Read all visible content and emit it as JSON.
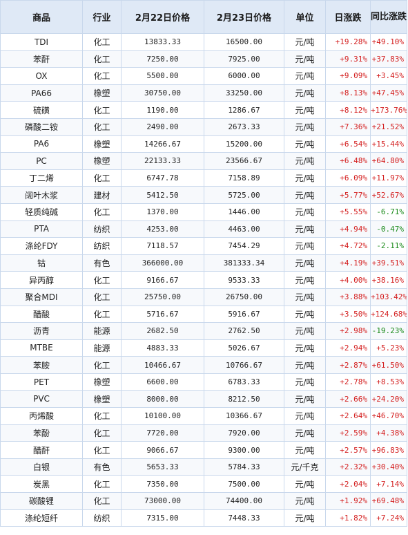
{
  "colors": {
    "header_bg": "#dfe9f6",
    "border": "#c9d8ec",
    "up": "#d42020",
    "down": "#1a8a1a"
  },
  "headers": [
    "商品",
    "行业",
    "2月22日价格",
    "2月23日价格",
    "单位",
    "日涨跌",
    "同比涨跌"
  ],
  "rows": [
    [
      "TDI",
      "化工",
      "13833.33",
      "16500.00",
      "元/吨",
      "+19.28%",
      "+49.10%"
    ],
    [
      "苯酐",
      "化工",
      "7250.00",
      "7925.00",
      "元/吨",
      "+9.31%",
      "+37.83%"
    ],
    [
      "OX",
      "化工",
      "5500.00",
      "6000.00",
      "元/吨",
      "+9.09%",
      "+3.45%"
    ],
    [
      "PA66",
      "橡塑",
      "30750.00",
      "33250.00",
      "元/吨",
      "+8.13%",
      "+47.45%"
    ],
    [
      "硫磺",
      "化工",
      "1190.00",
      "1286.67",
      "元/吨",
      "+8.12%",
      "+173.76%"
    ],
    [
      "磷酸二铵",
      "化工",
      "2490.00",
      "2673.33",
      "元/吨",
      "+7.36%",
      "+21.52%"
    ],
    [
      "PA6",
      "橡塑",
      "14266.67",
      "15200.00",
      "元/吨",
      "+6.54%",
      "+15.44%"
    ],
    [
      "PC",
      "橡塑",
      "22133.33",
      "23566.67",
      "元/吨",
      "+6.48%",
      "+64.80%"
    ],
    [
      "丁二烯",
      "化工",
      "6747.78",
      "7158.89",
      "元/吨",
      "+6.09%",
      "+11.97%"
    ],
    [
      "阔叶木浆",
      "建材",
      "5412.50",
      "5725.00",
      "元/吨",
      "+5.77%",
      "+52.67%"
    ],
    [
      "轻质纯碱",
      "化工",
      "1370.00",
      "1446.00",
      "元/吨",
      "+5.55%",
      "-6.71%"
    ],
    [
      "PTA",
      "纺织",
      "4253.00",
      "4463.00",
      "元/吨",
      "+4.94%",
      "-0.47%"
    ],
    [
      "涤纶FDY",
      "纺织",
      "7118.57",
      "7454.29",
      "元/吨",
      "+4.72%",
      "-2.11%"
    ],
    [
      "钴",
      "有色",
      "366000.00",
      "381333.34",
      "元/吨",
      "+4.19%",
      "+39.51%"
    ],
    [
      "异丙醇",
      "化工",
      "9166.67",
      "9533.33",
      "元/吨",
      "+4.00%",
      "+38.16%"
    ],
    [
      "聚合MDI",
      "化工",
      "25750.00",
      "26750.00",
      "元/吨",
      "+3.88%",
      "+103.42%"
    ],
    [
      "醋酸",
      "化工",
      "5716.67",
      "5916.67",
      "元/吨",
      "+3.50%",
      "+124.68%"
    ],
    [
      "沥青",
      "能源",
      "2682.50",
      "2762.50",
      "元/吨",
      "+2.98%",
      "-19.23%"
    ],
    [
      "MTBE",
      "能源",
      "4883.33",
      "5026.67",
      "元/吨",
      "+2.94%",
      "+5.23%"
    ],
    [
      "苯胺",
      "化工",
      "10466.67",
      "10766.67",
      "元/吨",
      "+2.87%",
      "+61.50%"
    ],
    [
      "PET",
      "橡塑",
      "6600.00",
      "6783.33",
      "元/吨",
      "+2.78%",
      "+8.53%"
    ],
    [
      "PVC",
      "橡塑",
      "8000.00",
      "8212.50",
      "元/吨",
      "+2.66%",
      "+24.20%"
    ],
    [
      "丙烯酸",
      "化工",
      "10100.00",
      "10366.67",
      "元/吨",
      "+2.64%",
      "+46.70%"
    ],
    [
      "苯酚",
      "化工",
      "7720.00",
      "7920.00",
      "元/吨",
      "+2.59%",
      "+4.38%"
    ],
    [
      "醋酐",
      "化工",
      "9066.67",
      "9300.00",
      "元/吨",
      "+2.57%",
      "+96.83%"
    ],
    [
      "白银",
      "有色",
      "5653.33",
      "5784.33",
      "元/千克",
      "+2.32%",
      "+30.40%"
    ],
    [
      "炭黑",
      "化工",
      "7350.00",
      "7500.00",
      "元/吨",
      "+2.04%",
      "+7.14%"
    ],
    [
      "碳酸锂",
      "化工",
      "73000.00",
      "74400.00",
      "元/吨",
      "+1.92%",
      "+69.48%"
    ],
    [
      "涤纶短纤",
      "纺织",
      "7315.00",
      "7448.33",
      "元/吨",
      "+1.82%",
      "+7.24%"
    ]
  ]
}
